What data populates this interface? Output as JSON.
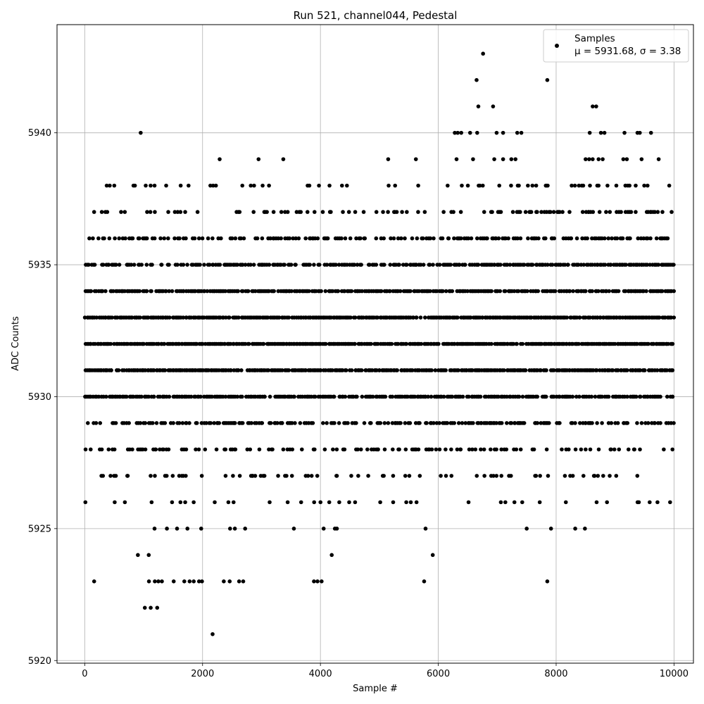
{
  "chart_data": {
    "type": "scatter",
    "title": "Run 521, channel044, Pedestal",
    "xlabel": "Sample #",
    "ylabel": "ADC Counts",
    "xlim": [
      -470,
      10330
    ],
    "ylim": [
      5919.9,
      5944.1
    ],
    "xticks": [
      0,
      2000,
      4000,
      6000,
      8000,
      10000
    ],
    "yticks": [
      5920,
      5925,
      5930,
      5935,
      5940
    ],
    "grid": true,
    "legend_position": "top-right",
    "marker_color": "#000000",
    "grid_color": "#b0b0b0",
    "series": [
      {
        "name": "Samples",
        "label_line1": "Samples",
        "label_line2": "μ = 5931.68, σ = 3.38",
        "n_samples": 10000,
        "levels": [
          5924,
          5925,
          5926,
          5927,
          5928,
          5929,
          5930,
          5931,
          5932,
          5933,
          5934,
          5935,
          5936,
          5937,
          5938
        ],
        "rare_points": [
          [
            950,
            5940
          ],
          [
            1020,
            5922
          ],
          [
            1120,
            5922
          ],
          [
            1230,
            5922
          ],
          [
            2170,
            5921
          ],
          [
            2290,
            5939
          ],
          [
            2950,
            5939
          ],
          [
            3370,
            5939
          ],
          [
            5150,
            5939
          ],
          [
            5620,
            5939
          ],
          [
            6280,
            5940
          ],
          [
            6330,
            5940
          ],
          [
            6390,
            5940
          ],
          [
            6540,
            5940
          ],
          [
            6660,
            5940
          ],
          [
            6680,
            5941
          ],
          [
            6650,
            5942
          ],
          [
            6760,
            5943
          ],
          [
            6930,
            5941
          ],
          [
            6990,
            5940
          ],
          [
            7100,
            5940
          ],
          [
            7340,
            5940
          ],
          [
            7410,
            5940
          ],
          [
            7850,
            5942
          ],
          [
            8570,
            5940
          ],
          [
            8620,
            5941
          ],
          [
            8680,
            5941
          ],
          [
            8760,
            5940
          ],
          [
            8820,
            5940
          ],
          [
            9160,
            5940
          ],
          [
            9380,
            5940
          ],
          [
            9420,
            5940
          ],
          [
            9610,
            5940
          ],
          [
            6310,
            5939
          ],
          [
            6590,
            5939
          ],
          [
            6950,
            5939
          ],
          [
            7100,
            5939
          ],
          [
            7240,
            5939
          ],
          [
            7310,
            5939
          ],
          [
            8500,
            5939
          ],
          [
            8560,
            5939
          ],
          [
            8620,
            5939
          ],
          [
            8720,
            5939
          ],
          [
            8790,
            5939
          ],
          [
            9140,
            5939
          ],
          [
            9200,
            5939
          ],
          [
            9450,
            5939
          ],
          [
            9740,
            5939
          ],
          [
            160,
            5923
          ],
          [
            1090,
            5923
          ],
          [
            1190,
            5923
          ],
          [
            1250,
            5923
          ],
          [
            1310,
            5923
          ],
          [
            1510,
            5923
          ],
          [
            1690,
            5923
          ],
          [
            1780,
            5923
          ],
          [
            1850,
            5923
          ],
          [
            1940,
            5923
          ],
          [
            1990,
            5923
          ],
          [
            2360,
            5923
          ],
          [
            2460,
            5923
          ],
          [
            2620,
            5923
          ],
          [
            2690,
            5923
          ],
          [
            3890,
            5923
          ],
          [
            3950,
            5923
          ],
          [
            4020,
            5923
          ],
          [
            5760,
            5923
          ],
          [
            7850,
            5923
          ]
        ]
      }
    ]
  }
}
